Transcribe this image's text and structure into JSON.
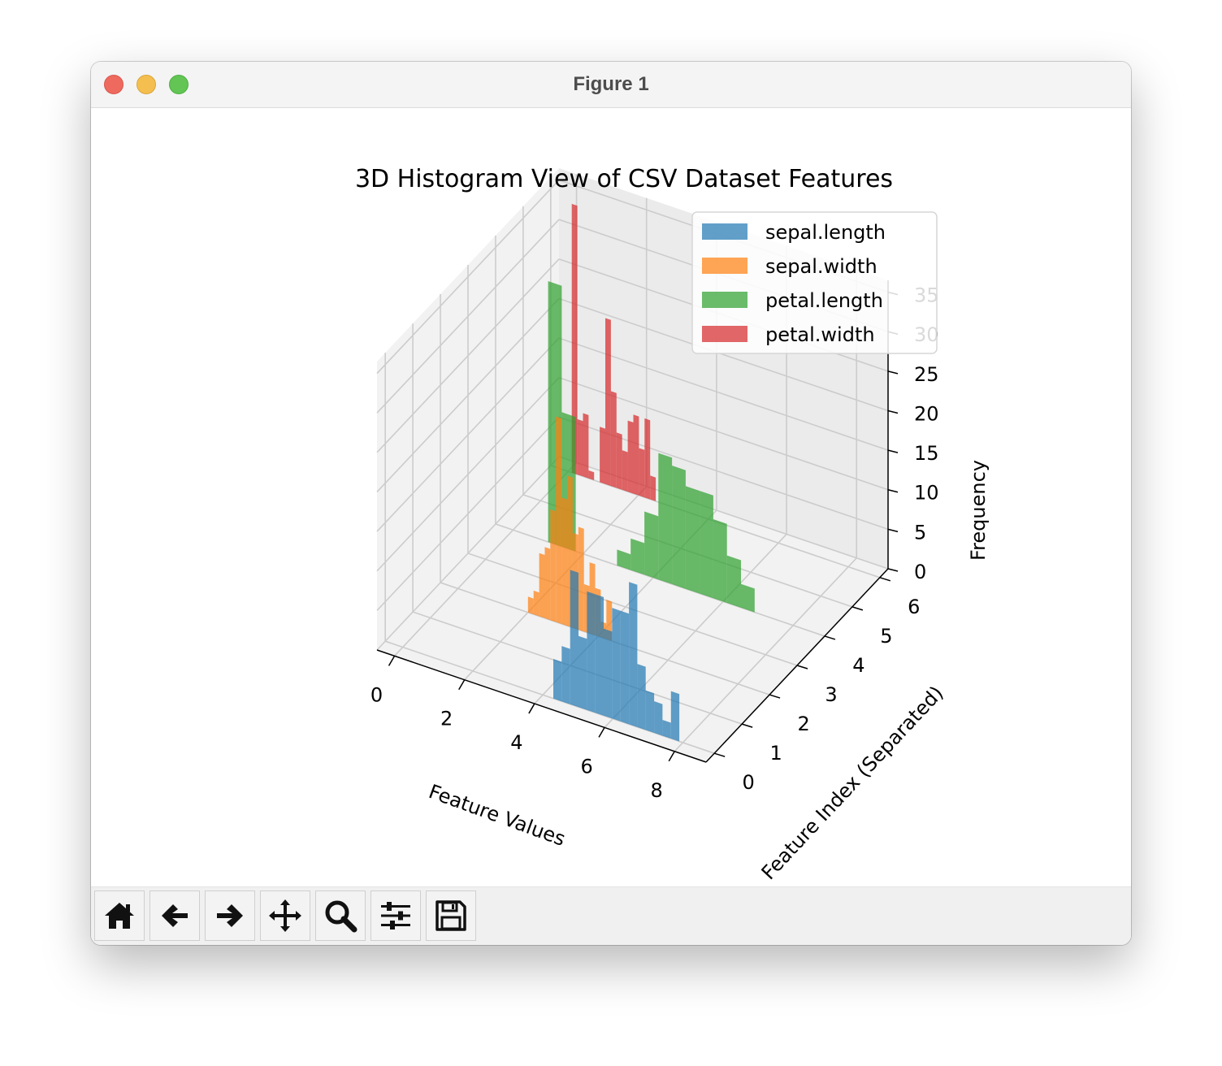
{
  "window": {
    "title": "Figure 1"
  },
  "toolbar": {
    "buttons": [
      {
        "name": "home-icon",
        "label": "Home"
      },
      {
        "name": "back-arrow-icon",
        "label": "Back"
      },
      {
        "name": "forward-arrow-icon",
        "label": "Forward"
      },
      {
        "name": "pan-move-icon",
        "label": "Pan"
      },
      {
        "name": "zoom-magnifier-icon",
        "label": "Zoom"
      },
      {
        "name": "configure-subplots-icon",
        "label": "Subplots"
      },
      {
        "name": "save-floppy-icon",
        "label": "Save"
      }
    ]
  },
  "chart_data": {
    "type": "bar",
    "projection": "3d",
    "title": "3D Histogram View of CSV Dataset Features",
    "xlabel": "Feature Values",
    "ylabel": "Feature Index (Separated)",
    "zlabel": "Frequency",
    "xlim": [
      0,
      8
    ],
    "ylim": [
      0,
      6
    ],
    "zlim": [
      0,
      35
    ],
    "xticks": [
      0,
      2,
      4,
      6,
      8
    ],
    "yticks": [
      0,
      1,
      2,
      3,
      4,
      5,
      6
    ],
    "zticks": [
      0,
      5,
      10,
      15,
      20,
      25,
      30,
      35
    ],
    "grid": true,
    "legend_position": "top-right",
    "series": [
      {
        "name": "sepal.length",
        "color": "#1f77b4",
        "y_index": 0,
        "bin_edges": [
          4.3,
          4.54,
          4.78,
          5.02,
          5.26,
          5.5,
          5.74,
          5.98,
          6.22,
          6.46,
          6.7,
          6.94,
          7.18,
          7.42,
          7.66,
          7.9
        ],
        "counts": [
          5,
          7,
          17,
          9,
          15,
          15,
          11,
          14,
          14,
          18,
          8,
          5,
          4,
          2,
          6
        ]
      },
      {
        "name": "sepal.width",
        "color": "#ff7f0e",
        "y_index": 2,
        "bin_edges": [
          2.0,
          2.16,
          2.32,
          2.48,
          2.64,
          2.8,
          2.96,
          3.12,
          3.28,
          3.44,
          3.6,
          3.76,
          3.92,
          4.08,
          4.24,
          4.4
        ],
        "counts": [
          2,
          3,
          8,
          9,
          14,
          26,
          16,
          19,
          12,
          13,
          6,
          9,
          6,
          2,
          5
        ]
      },
      {
        "name": "petal.length",
        "color": "#2ca02c",
        "y_index": 4,
        "bin_edges": [
          1.0,
          1.39,
          1.79,
          2.18,
          2.57,
          2.97,
          3.36,
          3.75,
          4.15,
          4.54,
          4.93,
          5.33,
          5.72,
          6.11,
          6.51,
          6.9
        ],
        "counts": [
          33,
          17,
          0,
          0,
          0,
          2,
          4,
          8,
          16,
          15,
          13,
          13,
          10,
          6,
          3
        ]
      },
      {
        "name": "petal.width",
        "color": "#d62728",
        "y_index": 6,
        "bin_edges": [
          0.1,
          0.26,
          0.42,
          0.58,
          0.74,
          0.9,
          1.06,
          1.22,
          1.38,
          1.54,
          1.7,
          1.86,
          2.02,
          2.18,
          2.34,
          2.5
        ],
        "counts": [
          34,
          7,
          8,
          1,
          0,
          7,
          21,
          12,
          7,
          5,
          9,
          10,
          6,
          10,
          3
        ]
      }
    ]
  }
}
